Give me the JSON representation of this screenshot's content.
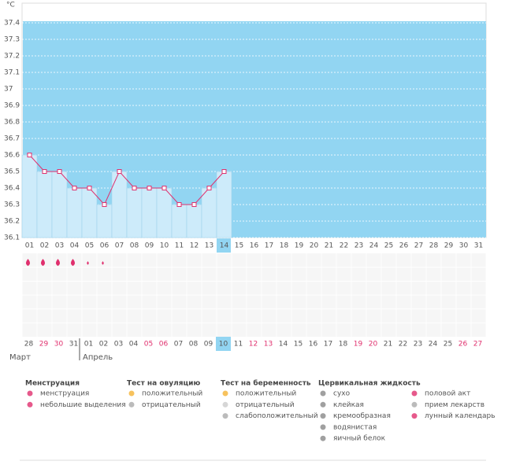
{
  "chart_data": {
    "type": "line",
    "ylabel": "°C",
    "categories": [
      "01",
      "02",
      "03",
      "04",
      "05",
      "06",
      "07",
      "08",
      "09",
      "10",
      "11",
      "12",
      "13",
      "14",
      "15",
      "16",
      "17",
      "18",
      "19",
      "20",
      "21",
      "22",
      "23",
      "24",
      "25",
      "26",
      "27",
      "28",
      "29",
      "30",
      "31"
    ],
    "values": [
      36.6,
      36.5,
      36.5,
      36.4,
      36.4,
      36.3,
      36.5,
      36.4,
      36.4,
      36.4,
      36.3,
      36.3,
      36.4,
      36.5,
      null,
      null,
      null,
      null,
      null,
      null,
      null,
      null,
      null,
      null,
      null,
      null,
      null,
      null,
      null,
      null,
      null
    ],
    "ylim": [
      36.1,
      37.5
    ],
    "yticks": [
      36.1,
      36.2,
      36.3,
      36.4,
      36.5,
      36.6,
      36.7,
      36.8,
      36.9,
      37,
      37.1,
      37.2,
      37.3,
      37.4
    ],
    "grid": true,
    "color": "#e0306e",
    "selected": 13,
    "menstruation_marks": [
      2,
      2,
      2,
      2,
      1,
      1
    ]
  },
  "calendar": {
    "dates": [
      {
        "label": "28",
        "weekend": false
      },
      {
        "label": "29",
        "weekend": true
      },
      {
        "label": "30",
        "weekend": true
      },
      {
        "label": "31",
        "weekend": false
      },
      {
        "label": "01",
        "weekend": false
      },
      {
        "label": "02",
        "weekend": false
      },
      {
        "label": "03",
        "weekend": false
      },
      {
        "label": "04",
        "weekend": false
      },
      {
        "label": "05",
        "weekend": true
      },
      {
        "label": "06",
        "weekend": true
      },
      {
        "label": "07",
        "weekend": false
      },
      {
        "label": "08",
        "weekend": false
      },
      {
        "label": "09",
        "weekend": false
      },
      {
        "label": "10",
        "weekend": false
      },
      {
        "label": "11",
        "weekend": false
      },
      {
        "label": "12",
        "weekend": true
      },
      {
        "label": "13",
        "weekend": true
      },
      {
        "label": "14",
        "weekend": false
      },
      {
        "label": "15",
        "weekend": false
      },
      {
        "label": "16",
        "weekend": false
      },
      {
        "label": "17",
        "weekend": false
      },
      {
        "label": "18",
        "weekend": false
      },
      {
        "label": "19",
        "weekend": true
      },
      {
        "label": "20",
        "weekend": true
      },
      {
        "label": "21",
        "weekend": false
      },
      {
        "label": "22",
        "weekend": false
      },
      {
        "label": "23",
        "weekend": false
      },
      {
        "label": "24",
        "weekend": false
      },
      {
        "label": "25",
        "weekend": false
      },
      {
        "label": "26",
        "weekend": true
      },
      {
        "label": "27",
        "weekend": true
      }
    ],
    "months": [
      {
        "label": "Март",
        "start": 0
      },
      {
        "label": "Апрель",
        "start": 4
      }
    ]
  },
  "legend": [
    {
      "title": "Менструация",
      "items": [
        {
          "label": "менструация",
          "color": "#e0306e"
        },
        {
          "label": "небольшие выделения",
          "color": "#e0306e"
        }
      ]
    },
    {
      "title": "Тест на овуляцию",
      "items": [
        {
          "label": "положительный",
          "color": "#f5b335"
        },
        {
          "label": "отрицательный",
          "color": "#aaaaaa"
        }
      ]
    },
    {
      "title": "Тест на беременность",
      "items": [
        {
          "label": "положительный",
          "color": "#f5b335"
        },
        {
          "label": "отрицательный",
          "color": "#cccccc"
        },
        {
          "label": "слабоположительный",
          "color": "#aaaaaa"
        }
      ]
    },
    {
      "title": "Цервикальная жидкость",
      "items": [
        {
          "label": "сухо",
          "color": "#888888"
        },
        {
          "label": "клейкая",
          "color": "#888888"
        },
        {
          "label": "кремообразная",
          "color": "#888888"
        },
        {
          "label": "водянистая",
          "color": "#888888"
        },
        {
          "label": "яичный белок",
          "color": "#888888"
        },
        {
          "label": "половой акт",
          "color": "#e0306e"
        },
        {
          "label": "прием лекарств",
          "color": "#aaaaaa"
        },
        {
          "label": "лунный календарь",
          "color": "#e0306e"
        }
      ]
    }
  ]
}
